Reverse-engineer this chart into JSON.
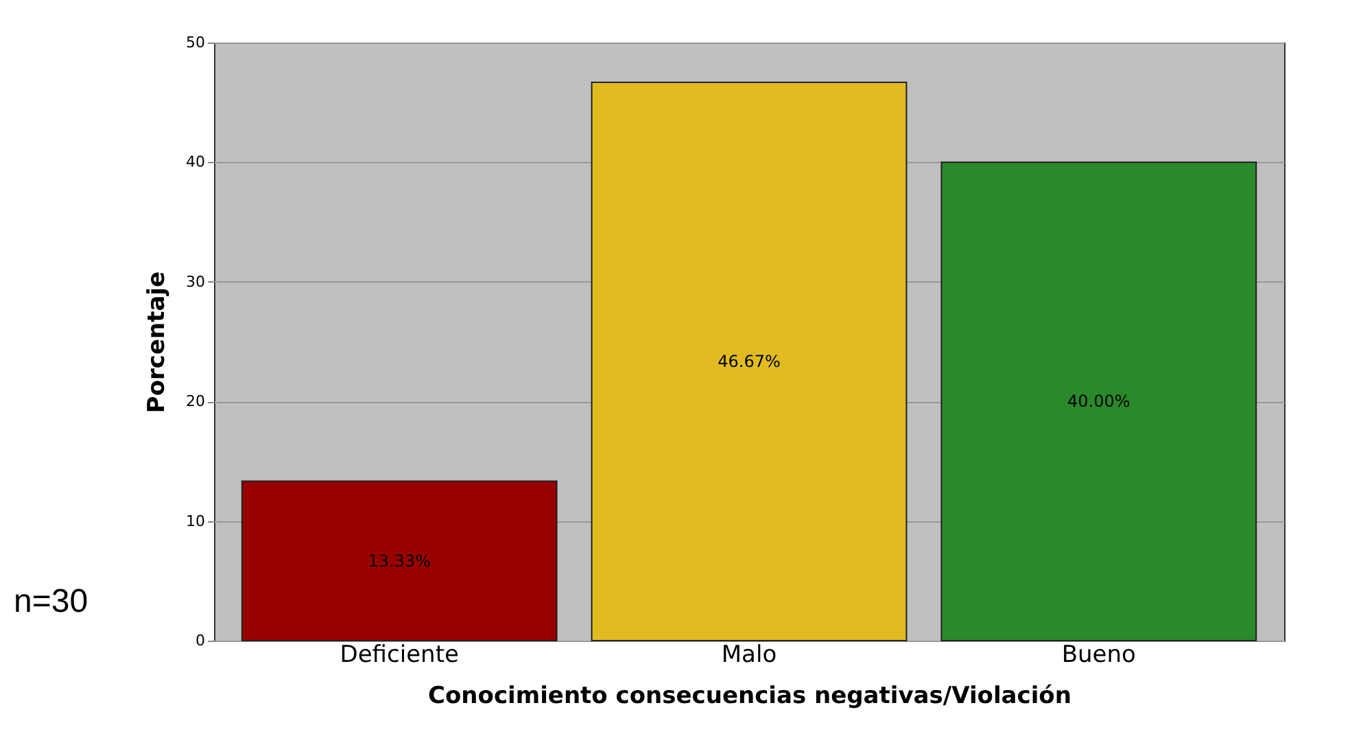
{
  "chart_data": {
    "type": "bar",
    "xlabel": "Conocimiento consecuencias negativas/Violación",
    "ylabel": "Porcentaje",
    "categories": [
      "Deficiente",
      "Malo",
      "Bueno"
    ],
    "values": [
      13.33,
      46.67,
      40.0
    ],
    "colors": [
      "#990000",
      "#e0bc20",
      "#2a892a"
    ],
    "value_labels": [
      "13.33%",
      "46.67%",
      "40.00%"
    ],
    "ylim": [
      0,
      50
    ],
    "yticks": [
      0,
      10,
      20,
      30,
      40,
      50
    ],
    "grid": "y",
    "annotations": [
      "n=30"
    ]
  }
}
